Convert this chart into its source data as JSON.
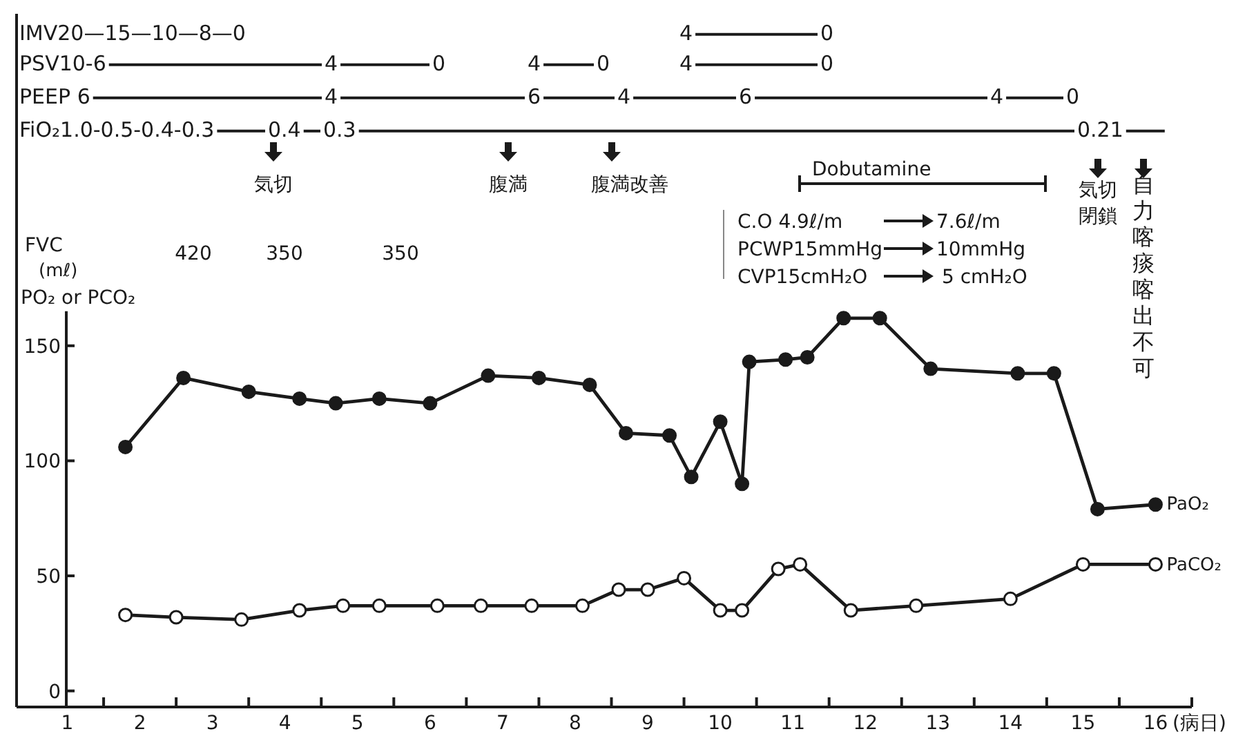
{
  "chart_data": {
    "type": "line",
    "xlabel": "(病日)",
    "ylabel": "PO₂ or PCO₂",
    "marker": "circle",
    "xlim": [
      0.3,
      16.5
    ],
    "ylim": [
      -7,
      165
    ],
    "xticks": [
      {
        "value": 1,
        "label": "1"
      },
      {
        "value": 1.5,
        "label": null
      },
      {
        "value": 2,
        "label": "2"
      },
      {
        "value": 2.5,
        "label": null
      },
      {
        "value": 3,
        "label": "3"
      },
      {
        "value": 3.5,
        "label": null
      },
      {
        "value": 4,
        "label": "4"
      },
      {
        "value": 4.5,
        "label": null
      },
      {
        "value": 5,
        "label": "5"
      },
      {
        "value": 5.5,
        "label": null
      },
      {
        "value": 6,
        "label": "6"
      },
      {
        "value": 6.5,
        "label": null
      },
      {
        "value": 7,
        "label": "7"
      },
      {
        "value": 7.5,
        "label": null
      },
      {
        "value": 8,
        "label": "8"
      },
      {
        "value": 8.5,
        "label": null
      },
      {
        "value": 9,
        "label": "9"
      },
      {
        "value": 9.5,
        "label": null
      },
      {
        "value": 10,
        "label": "10"
      },
      {
        "value": 10.5,
        "label": null
      },
      {
        "value": 11,
        "label": "11"
      },
      {
        "value": 11.5,
        "label": null
      },
      {
        "value": 12,
        "label": "12"
      },
      {
        "value": 12.5,
        "label": null
      },
      {
        "value": 13,
        "label": "13"
      },
      {
        "value": 13.5,
        "label": null
      },
      {
        "value": 14,
        "label": "14"
      },
      {
        "value": 14.5,
        "label": null
      },
      {
        "value": 15,
        "label": "15"
      },
      {
        "value": 15.5,
        "label": null
      },
      {
        "value": 16,
        "label": "16"
      },
      {
        "value": 16.5,
        "label": null
      }
    ],
    "yticks": [
      0,
      50,
      100,
      150
    ],
    "series": [
      {
        "name": "PaO₂",
        "color": "#1a1a1a",
        "x": [
          1.8,
          2.6,
          3.5,
          4.2,
          4.7,
          5.3,
          6.0,
          6.8,
          7.5,
          8.2,
          8.7,
          9.3,
          9.6,
          10.0,
          10.3,
          10.4,
          10.9,
          11.2,
          11.7,
          12.2,
          12.9,
          14.1,
          14.6,
          15.2,
          16.0
        ],
        "values": [
          106,
          136,
          130,
          127,
          125,
          127,
          125,
          137,
          136,
          133,
          112,
          111,
          93,
          117,
          90,
          143,
          144,
          145,
          162,
          162,
          140,
          138,
          138,
          79,
          81
        ]
      },
      {
        "name": "PaCO₂",
        "color": "#1a1a1a",
        "x": [
          1.8,
          2.5,
          3.4,
          4.2,
          4.8,
          5.3,
          6.1,
          6.7,
          7.4,
          8.1,
          8.6,
          9.0,
          9.5,
          10.0,
          10.3,
          10.8,
          11.1,
          11.8,
          12.7,
          14.0,
          15.0,
          16.0
        ],
        "values": [
          33,
          32,
          31,
          35,
          37,
          37,
          37,
          37,
          37,
          37,
          44,
          44,
          49,
          35,
          35,
          53,
          55,
          35,
          37,
          40,
          55,
          55
        ]
      }
    ],
    "annotations": [
      "IMV20—15—10—8—0",
      "4",
      "0",
      "PSV10-6",
      "4",
      "0",
      "4",
      "0",
      "4",
      "0",
      "PEEP 6",
      "4",
      "6",
      "4",
      "6",
      "4",
      "0",
      "FiO₂1.0-0.5-0.4-0.3",
      "0.4",
      "0.3",
      "0.21",
      "気切",
      "腹満",
      "腹満改善",
      "Dobutamine",
      "C.O 4.9ℓ/m",
      "7.6ℓ/m",
      "PCWP15mmHg",
      "10mmHg",
      "CVP15cmH₂O",
      "5 cmH₂O",
      "気切",
      "閉鎖",
      "自力喀痰喀出不可",
      "FVC",
      "(mℓ)",
      "420",
      "350",
      "350"
    ]
  }
}
